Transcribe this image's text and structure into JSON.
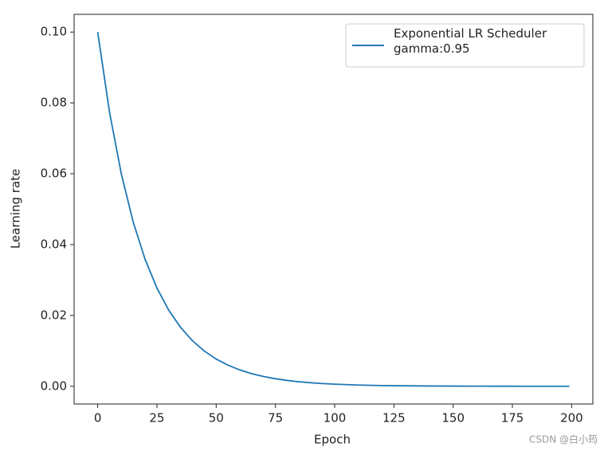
{
  "chart_data": {
    "type": "line",
    "x_label": "Epoch",
    "y_label": "Learning rate",
    "x": [
      0,
      5,
      10,
      15,
      20,
      25,
      30,
      35,
      40,
      45,
      50,
      55,
      60,
      65,
      70,
      75,
      80,
      85,
      90,
      95,
      100,
      110,
      120,
      130,
      140,
      150,
      160,
      170,
      180,
      190,
      199
    ],
    "series": [
      {
        "name": "Exponential LR Scheduler\ngamma:0.95",
        "color": "#1f77b4",
        "values": [
          0.1,
          0.07738,
          0.05987,
          0.04633,
          0.03585,
          0.02774,
          0.02146,
          0.01661,
          0.01285,
          0.00994,
          0.00769,
          0.00595,
          0.00461,
          0.00356,
          0.00276,
          0.00213,
          0.00165,
          0.00128,
          0.00099,
          0.00077,
          0.00059,
          0.00035,
          0.00021,
          0.00013,
          8e-05,
          5e-05,
          3e-05,
          2e-05,
          1e-05,
          1e-05,
          0.0
        ]
      }
    ],
    "xlim": [
      -9.95,
      208.95
    ],
    "ylim": [
      -0.005,
      0.105
    ],
    "xticks": [
      0,
      25,
      50,
      75,
      100,
      125,
      150,
      175,
      200
    ],
    "yticks": [
      {
        "value": 0,
        "label": "0.00"
      },
      0.02,
      0.04,
      0.06,
      0.08,
      {
        "value": 0.1,
        "label": "0.10"
      }
    ],
    "legend": "upper right",
    "watermark": "CSDN @白小筠"
  }
}
